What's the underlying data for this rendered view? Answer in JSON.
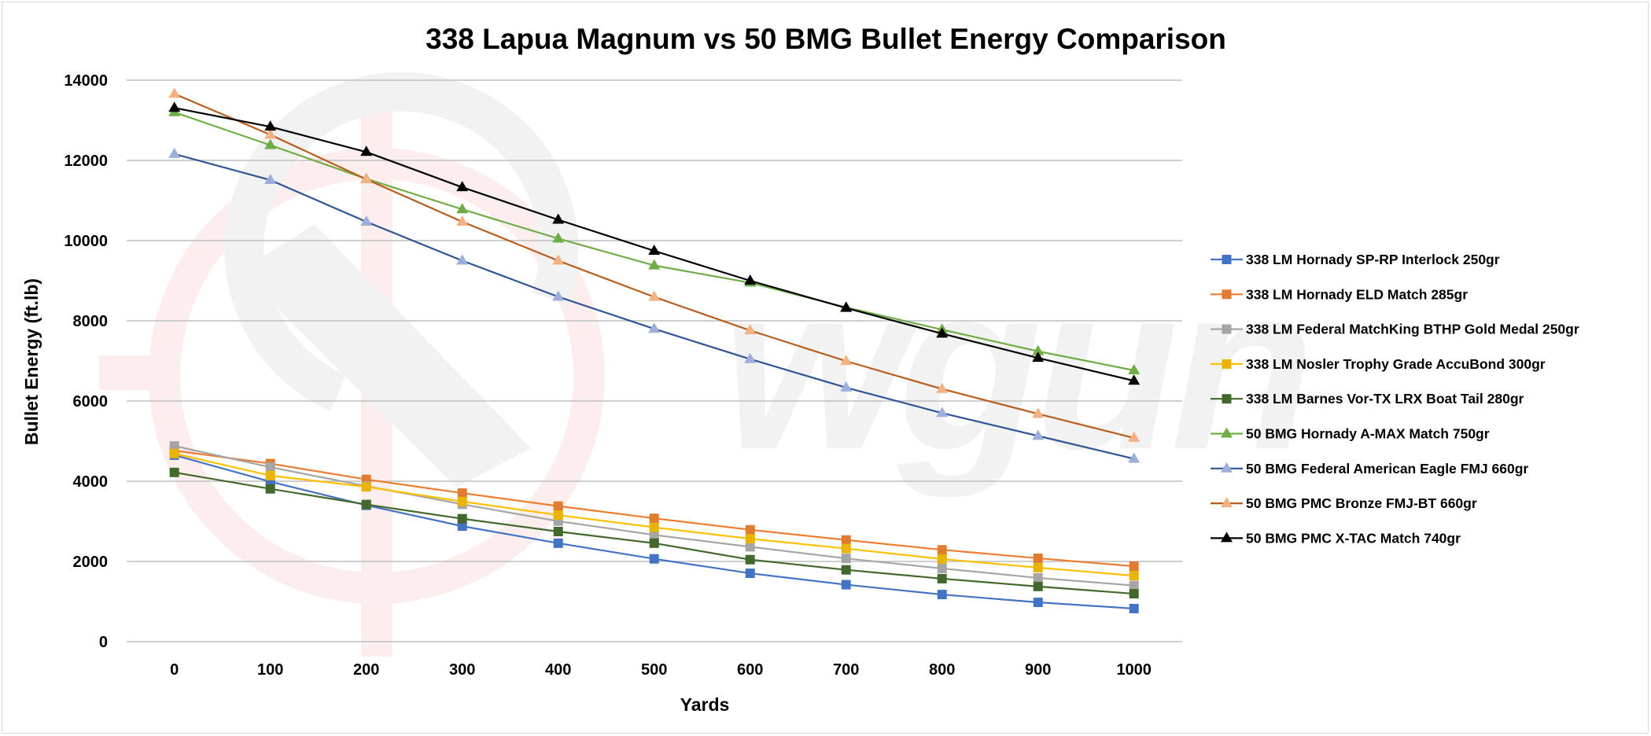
{
  "chart_data": {
    "type": "line",
    "title": "338 Lapua Magnum vs 50 BMG Bullet Energy Comparison",
    "xlabel": "Yards",
    "ylabel": "Bullet Energy (ft.lb)",
    "x": [
      0,
      100,
      200,
      300,
      400,
      500,
      600,
      700,
      800,
      900,
      1000
    ],
    "x_tick_labels": [
      "0",
      "100",
      "200",
      "300",
      "400",
      "500",
      "600",
      "700",
      "800",
      "900",
      "1000"
    ],
    "ylim": [
      0,
      14000
    ],
    "y_ticks": [
      0,
      2000,
      4000,
      6000,
      8000,
      10000,
      12000,
      14000
    ],
    "y_tick_labels": [
      "0",
      "2000",
      "4000",
      "6000",
      "8000",
      "10000",
      "12000",
      "14000"
    ],
    "grid": "horizontal",
    "legend_position": "right",
    "series": [
      {
        "name": "338 LM Hornady SP-RP Interlock 250gr",
        "marker": "square",
        "line_color": "#4472C4",
        "marker_color": "#4472C4",
        "values": [
          4650,
          3990,
          3400,
          2880,
          2455,
          2065,
          1705,
          1420,
          1175,
          980,
          825
        ]
      },
      {
        "name": "338 LM Hornady ELD Match 285gr",
        "marker": "square",
        "line_color": "#ED7D31",
        "marker_color": "#E07B32",
        "values": [
          4765,
          4440,
          4045,
          3705,
          3380,
          3075,
          2790,
          2535,
          2290,
          2080,
          1880
        ]
      },
      {
        "name": "338 LM Federal MatchKing BTHP Gold Medal 250gr",
        "marker": "square",
        "line_color": "#A5A5A5",
        "marker_color": "#A5A5A5",
        "values": [
          4880,
          4350,
          3880,
          3425,
          3005,
          2660,
          2365,
          2075,
          1825,
          1590,
          1400
        ]
      },
      {
        "name": "338 LM Nosler Trophy Grade AccuBond 300gr",
        "marker": "square",
        "line_color": "#FFC000",
        "marker_color": "#E8B400",
        "values": [
          4690,
          4140,
          3860,
          3495,
          3155,
          2850,
          2565,
          2320,
          2060,
          1845,
          1645
        ]
      },
      {
        "name": "338 LM Barnes Vor-TX LRX Boat Tail 280gr",
        "marker": "square",
        "line_color": "#43682B",
        "marker_color": "#43682B",
        "values": [
          4220,
          3810,
          3420,
          3065,
          2745,
          2455,
          2045,
          1790,
          1570,
          1375,
          1195
        ]
      },
      {
        "name": "50 BMG Hornady A-MAX Match 750gr",
        "marker": "triangle",
        "line_color": "#70AD47",
        "marker_color": "#70AD47",
        "values": [
          13200,
          12380,
          11540,
          10780,
          10050,
          9380,
          8950,
          8335,
          7780,
          7240,
          6765
        ]
      },
      {
        "name": "50 BMG Federal American Eagle FMJ 660gr",
        "marker": "triangle",
        "line_color": "#2F5597",
        "marker_color": "#9DAEDB",
        "values": [
          12160,
          11510,
          10470,
          9500,
          8600,
          7800,
          7045,
          6335,
          5700,
          5130,
          4560
        ]
      },
      {
        "name": "50 BMG PMC Bronze FMJ-BT 660gr",
        "marker": "triangle",
        "line_color": "#B85D1E",
        "marker_color": "#F4B183",
        "values": [
          13660,
          12640,
          11530,
          10470,
          9500,
          8595,
          7760,
          6995,
          6300,
          5680,
          5080
        ]
      },
      {
        "name": "50 BMG PMC X-TAC Match 740gr",
        "marker": "triangle",
        "line_color": "#000000",
        "marker_color": "#000000",
        "values": [
          13310,
          12840,
          12210,
          11330,
          10520,
          9745,
          9000,
          8320,
          7680,
          7075,
          6505
        ]
      }
    ]
  },
  "watermark": {
    "text": "wgun",
    "crosshair_color": "#fdeeee",
    "logo_color": "#f2f2f2"
  }
}
